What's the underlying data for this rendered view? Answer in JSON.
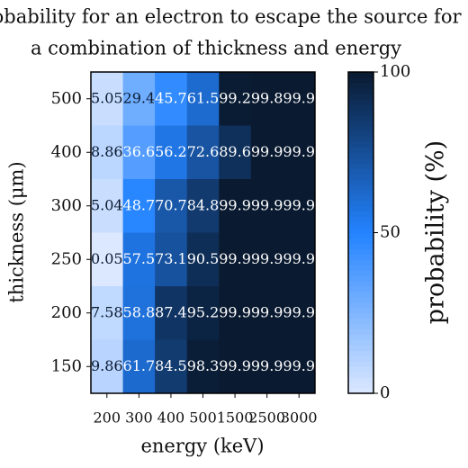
{
  "chart_data": {
    "type": "heatmap",
    "title": [
      "Probability for an electron to escape the source for",
      "a combination of thickness and energy"
    ],
    "xlabel": "energy (keV)",
    "ylabel": "thickness (μm)",
    "x_categories": [
      "200",
      "300",
      "400",
      "500",
      "1500",
      "2500",
      "3000"
    ],
    "y_categories": [
      "500",
      "400",
      "300",
      "250",
      "200",
      "150"
    ],
    "values": [
      [
        5.05,
        29.4,
        45.7,
        61.5,
        99.2,
        99.8,
        99.9
      ],
      [
        8.86,
        36.6,
        56.2,
        72.6,
        89.6,
        99.9,
        99.9
      ],
      [
        5.04,
        48.7,
        70.7,
        84.8,
        99.9,
        99.9,
        99.9
      ],
      [
        0.05,
        57.5,
        73.1,
        90.5,
        99.9,
        99.9,
        99.9
      ],
      [
        7.58,
        58.8,
        87.4,
        95.2,
        99.9,
        99.9,
        99.9
      ],
      [
        9.86,
        61.7,
        84.5,
        98.3,
        99.9,
        99.9,
        99.9
      ]
    ],
    "colorscale": [
      "#dce8ff",
      "#2383ff",
      "#0a1a30"
    ],
    "colorbar": {
      "label": "probability (%)",
      "lim": [
        0,
        100
      ],
      "ticks": [
        0,
        50,
        100
      ]
    }
  }
}
